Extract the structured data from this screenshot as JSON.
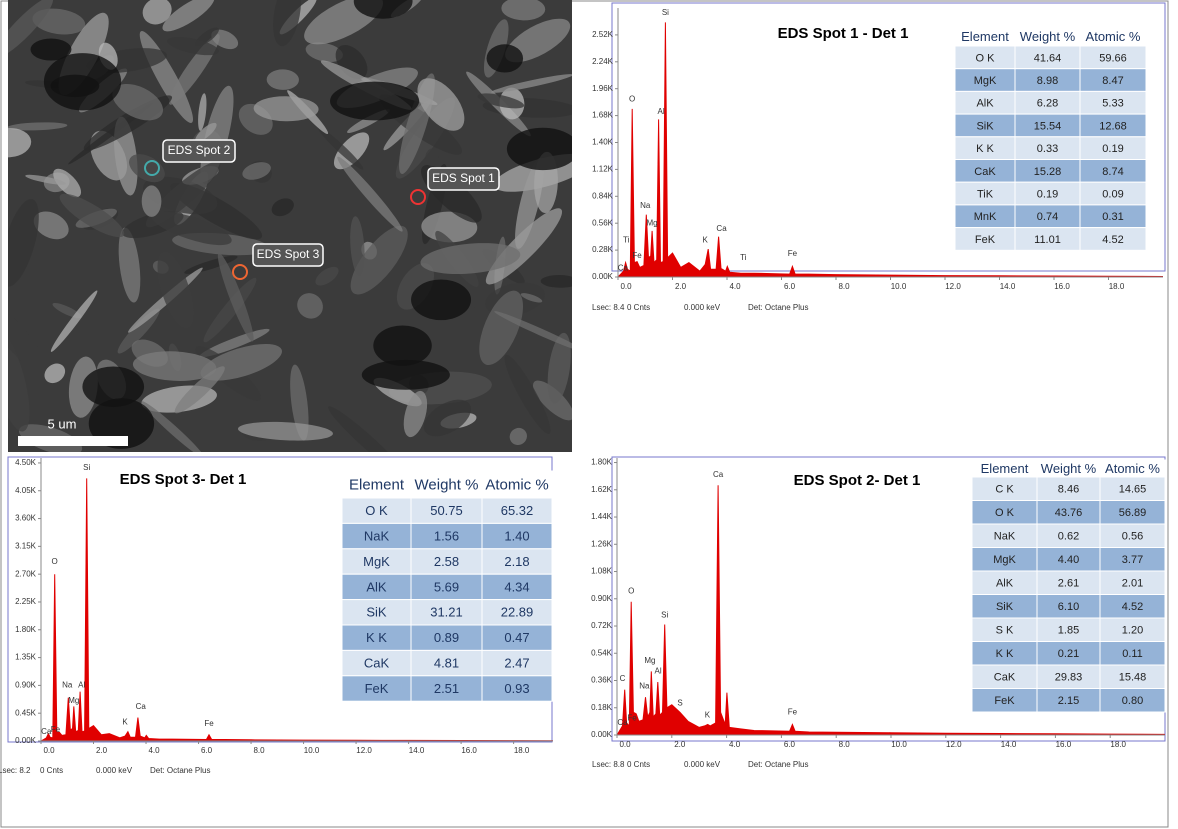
{
  "sem_image": {
    "labels": [
      "EDS Spot 1",
      "EDS Spot 2",
      "EDS Spot 3"
    ],
    "scale_bar": "5 um"
  },
  "chart_data": [
    {
      "type": "line",
      "title": "EDS Spot 1 - Det 1",
      "x": [
        0,
        0.2,
        0.28,
        0.35,
        0.45,
        0.52,
        0.6,
        0.7,
        0.8,
        0.95,
        1.04,
        1.12,
        1.2,
        1.25,
        1.32,
        1.42,
        1.49,
        1.56,
        1.66,
        1.74,
        1.82,
        2.0,
        2.3,
        2.6,
        3.0,
        3.2,
        3.31,
        3.4,
        3.6,
        3.69,
        3.78,
        3.95,
        4.01,
        4.1,
        4.51,
        5.0,
        6.3,
        6.4,
        6.5,
        7.0,
        8.0,
        10.0,
        12.0,
        14.0,
        16.0,
        18.0,
        20.0
      ],
      "series": [
        {
          "color": "#e00000",
          "values": [
            0,
            60,
            150,
            80,
            60,
            1750,
            150,
            160,
            100,
            120,
            650,
            200,
            220,
            480,
            150,
            180,
            1640,
            150,
            160,
            2650,
            200,
            250,
            100,
            150,
            60,
            130,
            290,
            80,
            80,
            420,
            90,
            60,
            110,
            50,
            40,
            40,
            30,
            110,
            30,
            30,
            25,
            20,
            15,
            12,
            10,
            8,
            5
          ]
        }
      ],
      "xlim": [
        0,
        20
      ],
      "ylim": [
        0,
        2800
      ],
      "xticks": [
        {
          "value": 0,
          "label": "0.0"
        },
        {
          "value": 2,
          "label": "2.0"
        },
        {
          "value": 4,
          "label": "4.0"
        },
        {
          "value": 6,
          "label": "6.0"
        },
        {
          "value": 8,
          "label": "8.0"
        },
        {
          "value": 10,
          "label": "10.0"
        },
        {
          "value": 12,
          "label": "12.0"
        },
        {
          "value": 14,
          "label": "14.0"
        },
        {
          "value": 16,
          "label": "16.0"
        },
        {
          "value": 18,
          "label": "18.0"
        }
      ],
      "yticks": [
        {
          "value": 0,
          "label": "0.00K"
        },
        {
          "value": 280,
          "label": "0.28K"
        },
        {
          "value": 560,
          "label": "0.56K"
        },
        {
          "value": 840,
          "label": "0.84K"
        },
        {
          "value": 1120,
          "label": "1.12K"
        },
        {
          "value": 1400,
          "label": "1.40K"
        },
        {
          "value": 1680,
          "label": "1.68K"
        },
        {
          "value": 1960,
          "label": "1.96K"
        },
        {
          "value": 2240,
          "label": "2.24K"
        },
        {
          "value": 2520,
          "label": "2.52K"
        }
      ],
      "annotations": [
        {
          "text": "Si",
          "x": 1.74,
          "y": 2750
        },
        {
          "text": "O",
          "x": 0.52,
          "y": 1850
        },
        {
          "text": "Al",
          "x": 1.58,
          "y": 1720
        },
        {
          "text": "Na",
          "x": 1.0,
          "y": 740
        },
        {
          "text": "Mg",
          "x": 1.25,
          "y": 560
        },
        {
          "text": "Ti",
          "x": 0.3,
          "y": 380
        },
        {
          "text": "Ca",
          "x": 0.18,
          "y": 90
        },
        {
          "text": "Fe",
          "x": 0.7,
          "y": 220
        },
        {
          "text": "K",
          "x": 3.2,
          "y": 380
        },
        {
          "text": "Ca",
          "x": 3.8,
          "y": 500
        },
        {
          "text": "Ti",
          "x": 4.6,
          "y": 200
        },
        {
          "text": "Fe",
          "x": 6.4,
          "y": 240
        }
      ],
      "footer": [
        "Lsec: 8.4",
        "0 Cnts",
        "0.000 keV",
        "Det: Octane Plus"
      ],
      "table": {
        "columns": [
          "Element",
          "Weight %",
          "Atomic %"
        ],
        "rows": [
          [
            "O K",
            "41.64",
            "59.66"
          ],
          [
            "MgK",
            "8.98",
            "8.47"
          ],
          [
            "AlK",
            "6.28",
            "5.33"
          ],
          [
            "SiK",
            "15.54",
            "12.68"
          ],
          [
            "K K",
            "0.33",
            "0.19"
          ],
          [
            "CaK",
            "15.28",
            "8.74"
          ],
          [
            "TiK",
            "0.19",
            "0.09"
          ],
          [
            "MnK",
            "0.74",
            "0.31"
          ],
          [
            "FeK",
            "11.01",
            "4.52"
          ]
        ]
      }
    },
    {
      "type": "line",
      "title": "EDS Spot 3- Det 1",
      "x": [
        0,
        0.2,
        0.28,
        0.35,
        0.45,
        0.52,
        0.6,
        0.7,
        0.8,
        0.95,
        1.04,
        1.12,
        1.2,
        1.25,
        1.32,
        1.42,
        1.49,
        1.56,
        1.66,
        1.74,
        1.82,
        2.0,
        2.3,
        2.6,
        3.0,
        3.2,
        3.31,
        3.4,
        3.6,
        3.69,
        3.78,
        3.95,
        4.01,
        4.1,
        4.51,
        5.0,
        6.3,
        6.4,
        6.5,
        7.0,
        8.0,
        10.0,
        12.0,
        14.0,
        16.0,
        18.0,
        19.5
      ],
      "series": [
        {
          "color": "#e00000",
          "values": [
            0,
            50,
            120,
            60,
            50,
            2700,
            150,
            140,
            90,
            100,
            700,
            180,
            200,
            560,
            150,
            170,
            800,
            150,
            160,
            4250,
            200,
            250,
            100,
            120,
            50,
            80,
            150,
            60,
            60,
            380,
            80,
            50,
            90,
            40,
            30,
            30,
            25,
            100,
            25,
            25,
            20,
            15,
            12,
            10,
            8,
            6,
            4
          ]
        }
      ],
      "xlim": [
        0,
        19.5
      ],
      "ylim": [
        0,
        4580
      ],
      "xticks": [
        {
          "value": 0,
          "label": "0.0"
        },
        {
          "value": 2,
          "label": "2.0"
        },
        {
          "value": 4,
          "label": "4.0"
        },
        {
          "value": 6,
          "label": "6.0"
        },
        {
          "value": 8,
          "label": "8.0"
        },
        {
          "value": 10,
          "label": "10.0"
        },
        {
          "value": 12,
          "label": "12.0"
        },
        {
          "value": 14,
          "label": "14.0"
        },
        {
          "value": 16,
          "label": "16.0"
        },
        {
          "value": 18,
          "label": "18.0"
        }
      ],
      "yticks": [
        {
          "value": 0,
          "label": "0.00K"
        },
        {
          "value": 450,
          "label": "0.45K"
        },
        {
          "value": 900,
          "label": "0.90K"
        },
        {
          "value": 1350,
          "label": "1.35K"
        },
        {
          "value": 1800,
          "label": "1.80K"
        },
        {
          "value": 2250,
          "label": "2.25K"
        },
        {
          "value": 2700,
          "label": "2.70K"
        },
        {
          "value": 3150,
          "label": "3.15K"
        },
        {
          "value": 3600,
          "label": "3.60K"
        },
        {
          "value": 4050,
          "label": "4.05K"
        },
        {
          "value": 4500,
          "label": "4.50K"
        }
      ],
      "annotations": [
        {
          "text": "Si",
          "x": 1.74,
          "y": 4420
        },
        {
          "text": "O",
          "x": 0.52,
          "y": 2900
        },
        {
          "text": "Na",
          "x": 1.0,
          "y": 900
        },
        {
          "text": "Al",
          "x": 1.55,
          "y": 900
        },
        {
          "text": "Mg",
          "x": 1.25,
          "y": 650
        },
        {
          "text": "Ca",
          "x": 0.2,
          "y": 150
        },
        {
          "text": "Fe",
          "x": 0.55,
          "y": 180
        },
        {
          "text": "K",
          "x": 3.2,
          "y": 300
        },
        {
          "text": "Ca",
          "x": 3.8,
          "y": 550
        },
        {
          "text": "Fe",
          "x": 6.4,
          "y": 280
        }
      ],
      "footer": [
        "Lsec: 8.2",
        "0 Cnts",
        "0.000 keV",
        "Det: Octane Plus"
      ],
      "table": {
        "columns": [
          "Element",
          "Weight %",
          "Atomic %"
        ],
        "rows": [
          [
            "O K",
            "50.75",
            "65.32"
          ],
          [
            "NaK",
            "1.56",
            "1.40"
          ],
          [
            "MgK",
            "2.58",
            "2.18"
          ],
          [
            "AlK",
            "5.69",
            "4.34"
          ],
          [
            "SiK",
            "31.21",
            "22.89"
          ],
          [
            "K K",
            "0.89",
            "0.47"
          ],
          [
            "CaK",
            "4.81",
            "2.47"
          ],
          [
            "FeK",
            "2.51",
            "0.93"
          ]
        ]
      }
    },
    {
      "type": "line",
      "title": "EDS Spot 2- Det 1",
      "x": [
        0,
        0.2,
        0.28,
        0.35,
        0.45,
        0.52,
        0.6,
        0.7,
        0.8,
        0.95,
        1.04,
        1.12,
        1.2,
        1.25,
        1.32,
        1.42,
        1.49,
        1.56,
        1.66,
        1.74,
        1.82,
        2.0,
        2.3,
        2.6,
        3.0,
        3.2,
        3.31,
        3.4,
        3.6,
        3.69,
        3.78,
        3.95,
        4.01,
        4.1,
        4.51,
        5.0,
        6.3,
        6.4,
        6.5,
        7.0,
        8.0,
        10.0,
        12.0,
        14.0,
        16.0,
        18.0,
        20.0
      ],
      "series": [
        {
          "color": "#e00000",
          "values": [
            0,
            60,
            300,
            80,
            60,
            880,
            150,
            140,
            90,
            100,
            250,
            120,
            150,
            420,
            120,
            140,
            350,
            130,
            150,
            730,
            180,
            200,
            150,
            90,
            50,
            60,
            70,
            60,
            80,
            1650,
            150,
            70,
            280,
            50,
            40,
            30,
            25,
            70,
            25,
            20,
            18,
            15,
            12,
            10,
            8,
            6,
            4
          ]
        }
      ],
      "xlim": [
        0,
        20
      ],
      "ylim": [
        0,
        1830
      ],
      "xticks": [
        {
          "value": 0,
          "label": "0.0"
        },
        {
          "value": 2,
          "label": "2.0"
        },
        {
          "value": 4,
          "label": "4.0"
        },
        {
          "value": 6,
          "label": "6.0"
        },
        {
          "value": 8,
          "label": "8.0"
        },
        {
          "value": 10,
          "label": "10.0"
        },
        {
          "value": 12,
          "label": "12.0"
        },
        {
          "value": 14,
          "label": "14.0"
        },
        {
          "value": 16,
          "label": "16.0"
        },
        {
          "value": 18,
          "label": "18.0"
        }
      ],
      "yticks": [
        {
          "value": 0,
          "label": "0.00K"
        },
        {
          "value": 180,
          "label": "0.18K"
        },
        {
          "value": 360,
          "label": "0.36K"
        },
        {
          "value": 540,
          "label": "0.54K"
        },
        {
          "value": 720,
          "label": "0.72K"
        },
        {
          "value": 900,
          "label": "0.90K"
        },
        {
          "value": 1080,
          "label": "1.08K"
        },
        {
          "value": 1260,
          "label": "1.26K"
        },
        {
          "value": 1440,
          "label": "1.44K"
        },
        {
          "value": 1620,
          "label": "1.62K"
        },
        {
          "value": 1800,
          "label": "1.80K"
        }
      ],
      "annotations": [
        {
          "text": "Ca",
          "x": 3.69,
          "y": 1720
        },
        {
          "text": "O",
          "x": 0.52,
          "y": 950
        },
        {
          "text": "Si",
          "x": 1.74,
          "y": 790
        },
        {
          "text": "Mg",
          "x": 1.2,
          "y": 490
        },
        {
          "text": "Al",
          "x": 1.5,
          "y": 420
        },
        {
          "text": "Na",
          "x": 1.0,
          "y": 320
        },
        {
          "text": "C",
          "x": 0.2,
          "y": 370
        },
        {
          "text": "Ca",
          "x": 0.2,
          "y": 80
        },
        {
          "text": "Fe",
          "x": 0.55,
          "y": 110
        },
        {
          "text": "S",
          "x": 2.3,
          "y": 210
        },
        {
          "text": "K",
          "x": 3.3,
          "y": 130
        },
        {
          "text": "Fe",
          "x": 6.4,
          "y": 150
        }
      ],
      "footer": [
        "Lsec: 8.8",
        "0 Cnts",
        "0.000 keV",
        "Det: Octane Plus"
      ],
      "table": {
        "columns": [
          "Element",
          "Weight %",
          "Atomic %"
        ],
        "rows": [
          [
            "C K",
            "8.46",
            "14.65"
          ],
          [
            "O K",
            "43.76",
            "56.89"
          ],
          [
            "NaK",
            "0.62",
            "0.56"
          ],
          [
            "MgK",
            "4.40",
            "3.77"
          ],
          [
            "AlK",
            "2.61",
            "2.01"
          ],
          [
            "SiK",
            "6.10",
            "4.52"
          ],
          [
            "S K",
            "1.85",
            "1.20"
          ],
          [
            "K K",
            "0.21",
            "0.11"
          ],
          [
            "CaK",
            "29.83",
            "15.48"
          ],
          [
            "FeK",
            "2.15",
            "0.80"
          ]
        ]
      }
    }
  ]
}
